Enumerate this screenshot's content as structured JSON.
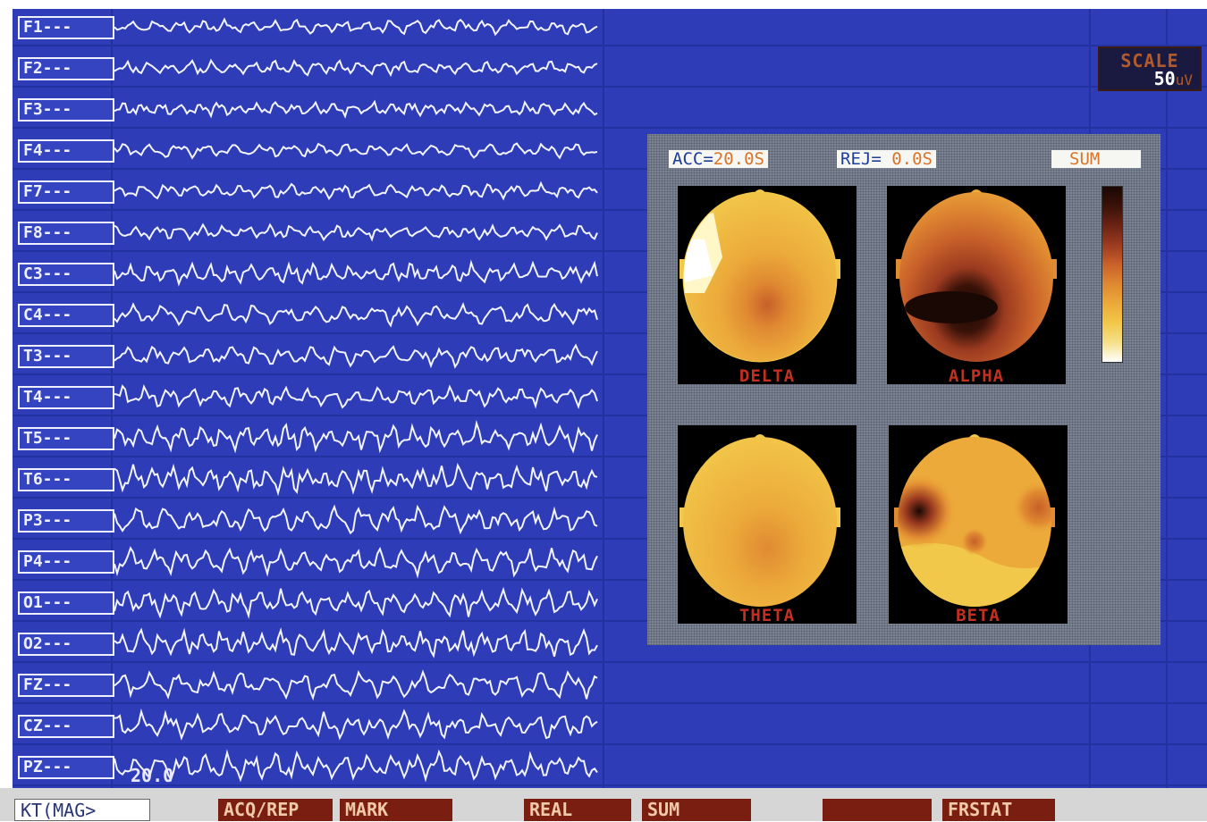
{
  "channels": [
    {
      "label": "F1---"
    },
    {
      "label": "F2---"
    },
    {
      "label": "F3---"
    },
    {
      "label": "F4---"
    },
    {
      "label": "F7---"
    },
    {
      "label": "F8---"
    },
    {
      "label": "C3---"
    },
    {
      "label": "C4---"
    },
    {
      "label": "T3---"
    },
    {
      "label": "T4---"
    },
    {
      "label": "T5---"
    },
    {
      "label": "T6---"
    },
    {
      "label": "P3---"
    },
    {
      "label": "P4---"
    },
    {
      "label": "O1---"
    },
    {
      "label": "O2---"
    },
    {
      "label": "FZ---"
    },
    {
      "label": "CZ---"
    },
    {
      "label": "PZ---"
    }
  ],
  "scale": {
    "label": "SCALE",
    "value": "50",
    "unit": "uV"
  },
  "topo_header": {
    "acc_label": "ACC=",
    "acc_value": "20.0S",
    "rej_label": "REJ=",
    "rej_value": " 0.0S",
    "sum_label": "SUM"
  },
  "topo_maps": [
    {
      "label": "DELTA",
      "icon": "delta-topomap"
    },
    {
      "label": "ALPHA",
      "icon": "alpha-topomap"
    },
    {
      "label": "THETA",
      "icon": "theta-topomap"
    },
    {
      "label": "BETA",
      "icon": "beta-topomap"
    }
  ],
  "colors": {
    "background": "#2f3cb7",
    "trace": "#f2f4ff",
    "map_scale": [
      "#ffffff",
      "#f5e08a",
      "#f2c84a",
      "#ecaa3a",
      "#e08a32",
      "#c8602a",
      "#9a3a20",
      "#6a2214",
      "#3a1208",
      "#1a0804"
    ]
  },
  "cursor_time": "20.0",
  "menu": {
    "input": "KT(MAG>",
    "acq_rep": "ACQ/REP",
    "mark": "MARK",
    "real": "REAL",
    "sum": "SUM",
    "blank": "",
    "frstat": "FRSTAT"
  }
}
